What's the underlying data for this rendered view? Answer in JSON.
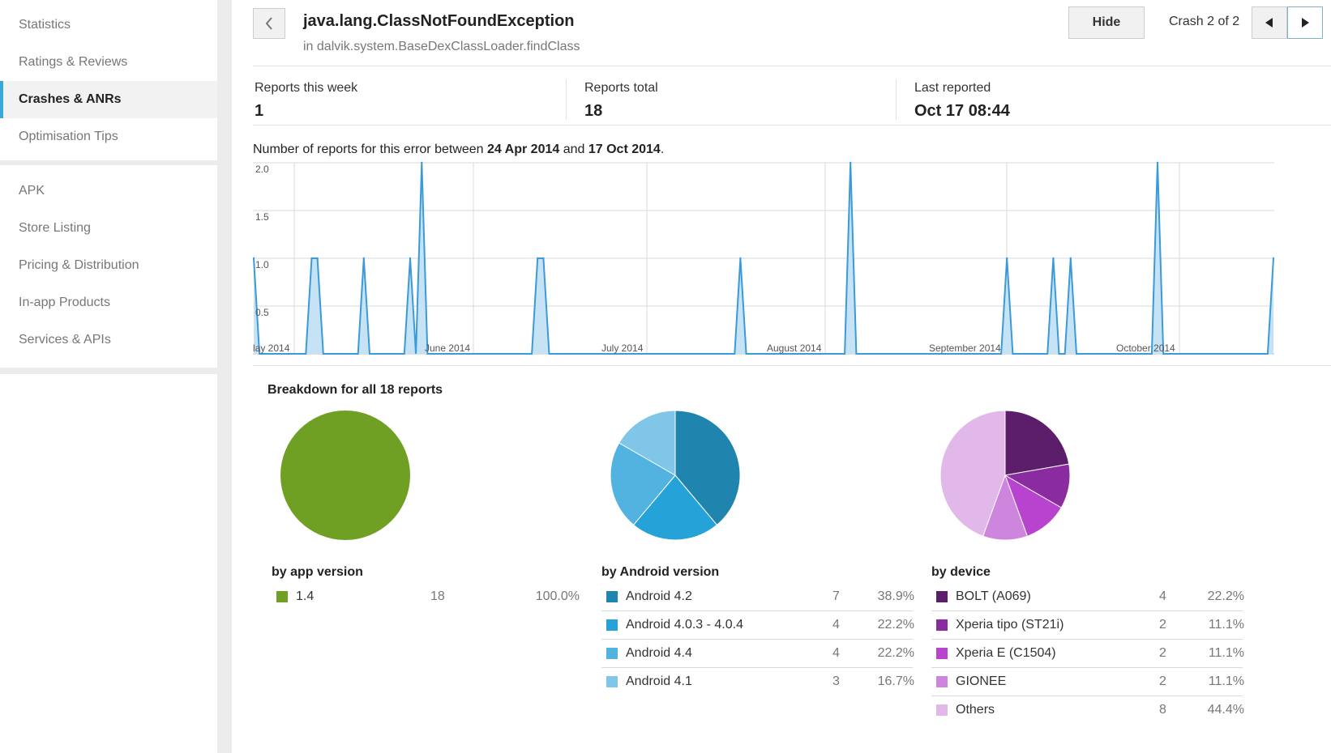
{
  "sidebar": {
    "group1": [
      {
        "label": "Statistics",
        "active": false
      },
      {
        "label": "Ratings & Reviews",
        "active": false
      },
      {
        "label": "Crashes & ANRs",
        "active": true
      },
      {
        "label": "Optimisation Tips",
        "active": false
      }
    ],
    "group2": [
      {
        "label": "APK"
      },
      {
        "label": "Store Listing"
      },
      {
        "label": "Pricing & Distribution"
      },
      {
        "label": "In-app Products"
      },
      {
        "label": "Services & APIs"
      }
    ]
  },
  "header": {
    "back_icon": "chevron-left-icon",
    "title": "java.lang.ClassNotFoundException",
    "subtitle": "in dalvik.system.BaseDexClassLoader.findClass",
    "hide_label": "Hide",
    "crash_count": "Crash 2 of 2",
    "prev_icon": "triangle-left-icon",
    "next_icon": "triangle-right-icon"
  },
  "stats": [
    {
      "label": "Reports this week",
      "value": "1"
    },
    {
      "label": "Reports total",
      "value": "18"
    },
    {
      "label": "Last reported",
      "value": "Oct 17 08:44"
    }
  ],
  "range": {
    "prefix": "Number of reports for this error between ",
    "start": "24 Apr 2014",
    "mid": " and ",
    "end": "17 Oct 2014",
    "suffix": "."
  },
  "chart_data": [
    {
      "type": "area",
      "title": "Number of reports for this error between 24 Apr 2014 and 17 Oct 2014.",
      "ylim": [
        0,
        2
      ],
      "yticks": [
        "2.0",
        "1.5",
        "1.0",
        "0.5"
      ],
      "xtick_labels": [
        "lay 2014",
        "June 2014",
        "July 2014",
        "August 2014",
        "September 2014",
        "October 2014"
      ],
      "series_name": "reports",
      "day_count": 177,
      "events": [
        {
          "day": 0,
          "value": 1
        },
        {
          "day": 10,
          "value": 1
        },
        {
          "day": 11,
          "value": 1
        },
        {
          "day": 19,
          "value": 1
        },
        {
          "day": 27,
          "value": 1
        },
        {
          "day": 29,
          "value": 2
        },
        {
          "day": 49,
          "value": 1
        },
        {
          "day": 50,
          "value": 1
        },
        {
          "day": 84,
          "value": 1
        },
        {
          "day": 103,
          "value": 2
        },
        {
          "day": 130,
          "value": 1
        },
        {
          "day": 138,
          "value": 1
        },
        {
          "day": 141,
          "value": 1
        },
        {
          "day": 156,
          "value": 2
        },
        {
          "day": 176,
          "value": 1
        }
      ],
      "fill_color": "#c6e2f5",
      "line_color": "#3b9ad9"
    },
    {
      "type": "pie",
      "title": "by app version",
      "categories": [
        "1.4"
      ],
      "values": [
        18
      ]
    },
    {
      "type": "pie",
      "title": "by Android version",
      "categories": [
        "Android 4.2",
        "Android 4.0.3 - 4.0.4",
        "Android 4.4",
        "Android 4.1"
      ],
      "values": [
        7,
        4,
        4,
        3
      ]
    },
    {
      "type": "pie",
      "title": "by device",
      "categories": [
        "BOLT (A069)",
        "Xperia tipo (ST21i)",
        "Xperia E (C1504)",
        "GIONEE",
        "Others"
      ],
      "values": [
        4,
        2,
        2,
        2,
        8
      ]
    }
  ],
  "breakdown": {
    "title": "Breakdown for all 18 reports",
    "groups": [
      {
        "label": "by app version",
        "rows": [
          {
            "name": "1.4",
            "count": "18",
            "pct": "100.0%",
            "color": "#6fa024"
          }
        ]
      },
      {
        "label": "by Android version",
        "rows": [
          {
            "name": "Android 4.2",
            "count": "7",
            "pct": "38.9%",
            "color": "#1f84ae"
          },
          {
            "name": "Android 4.0.3 - 4.0.4",
            "count": "4",
            "pct": "22.2%",
            "color": "#25a3d8"
          },
          {
            "name": "Android 4.4",
            "count": "4",
            "pct": "22.2%",
            "color": "#52b2e0"
          },
          {
            "name": "Android 4.1",
            "count": "3",
            "pct": "16.7%",
            "color": "#7fc6e8"
          }
        ]
      },
      {
        "label": "by device",
        "rows": [
          {
            "name": "BOLT (A069)",
            "count": "4",
            "pct": "22.2%",
            "color": "#5c1e6a"
          },
          {
            "name": "Xperia tipo (ST21i)",
            "count": "2",
            "pct": "11.1%",
            "color": "#8b2ba0"
          },
          {
            "name": "Xperia E (C1504)",
            "count": "2",
            "pct": "11.1%",
            "color": "#b843cf"
          },
          {
            "name": "GIONEE",
            "count": "2",
            "pct": "11.1%",
            "color": "#cd85de"
          },
          {
            "name": "Others",
            "count": "8",
            "pct": "44.4%",
            "color": "#e2b8ea"
          }
        ]
      }
    ]
  }
}
